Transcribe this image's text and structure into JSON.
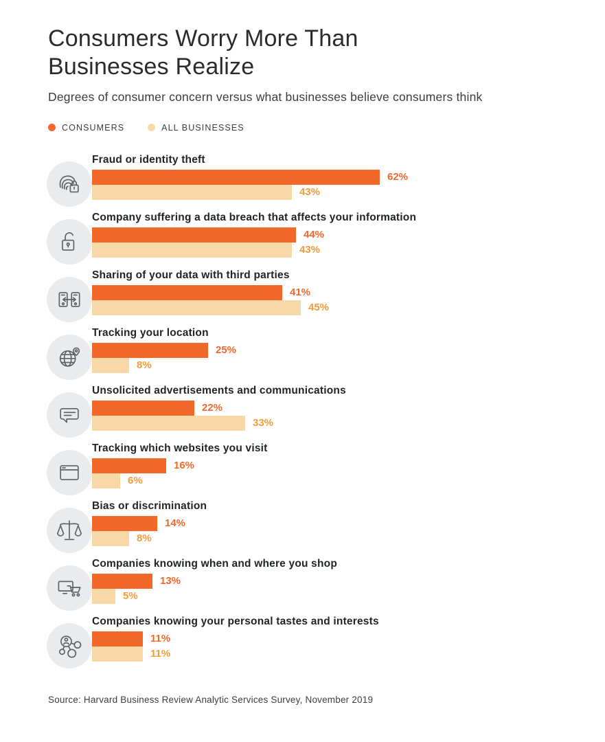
{
  "header": {
    "title_line1": "Consumers Worry More Than",
    "title_line2": "Businesses Realize",
    "subtitle": "Degrees of consumer concern versus what businesses believe consumers think"
  },
  "legend": {
    "consumers_label": "CONSUMERS",
    "businesses_label": "ALL BUSINESSES"
  },
  "colors": {
    "consumer": "#F2682B",
    "business": "#F9D8A8",
    "consumer_value_label": "#F2682B",
    "business_value_label": "#F49B3C",
    "icon_circle_bg": "#E9EBEC",
    "icon_stroke": "#5B6166",
    "heading_text": "#212426"
  },
  "chart_data": {
    "type": "bar",
    "orientation": "horizontal",
    "title": "Consumers Worry More Than Businesses Realize",
    "subtitle": "Degrees of consumer concern versus what businesses believe consumers think",
    "unit": "%",
    "value_suffix": "%",
    "xlim": [
      0,
      62
    ],
    "grid": false,
    "legend_position": "top-left",
    "categories": [
      "Fraud or identity theft",
      "Company suffering a data breach that affects your information",
      "Sharing of your data with third parties",
      "Tracking your location",
      "Unsolicited advertisements and communications",
      "Tracking which websites you visit",
      "Bias or discrimination",
      "Companies knowing when and where you shop",
      "Companies knowing your personal tastes and interests"
    ],
    "icons": [
      "fingerprint-lock-icon",
      "open-padlock-icon",
      "devices-transfer-icon",
      "globe-pin-icon",
      "speech-bubble-icon",
      "browser-window-icon",
      "scales-icon",
      "monitor-cart-icon",
      "network-people-icon"
    ],
    "series": [
      {
        "name": "Consumers",
        "values": [
          62,
          44,
          41,
          25,
          22,
          16,
          14,
          13,
          11
        ]
      },
      {
        "name": "All businesses",
        "values": [
          43,
          43,
          45,
          8,
          33,
          6,
          8,
          5,
          11
        ]
      }
    ]
  },
  "footer": {
    "source": "Source: Harvard Business Review Analytic Services Survey, November 2019"
  }
}
